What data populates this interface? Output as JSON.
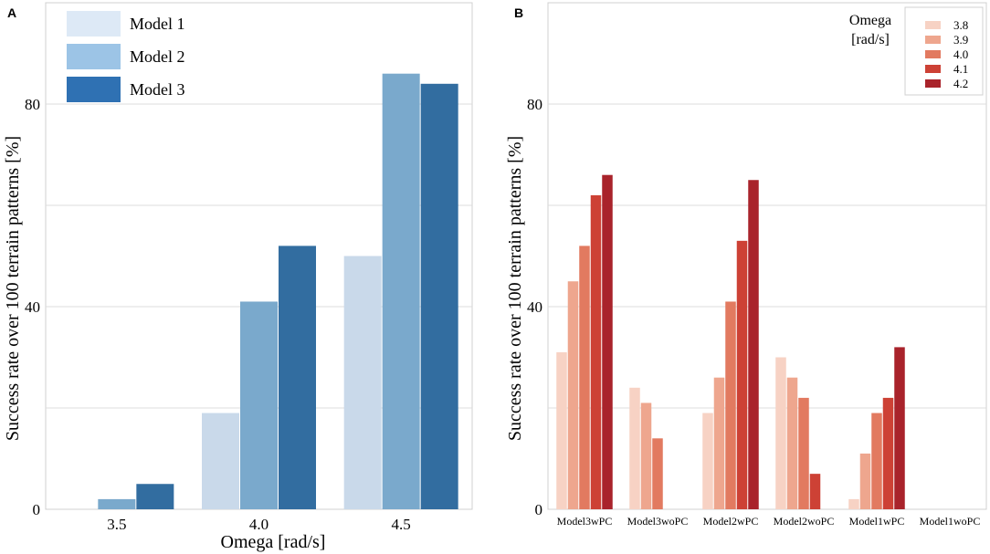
{
  "chart_data": [
    {
      "panel": "A",
      "type": "bar",
      "xlabel": "Omega [rad/s]",
      "ylabel": "Success rate over 100 terrain patterns [%]",
      "ylim": [
        0,
        100
      ],
      "yticks": [
        "0",
        "40",
        "80"
      ],
      "grid": true,
      "legend_position": "top-left",
      "categories": [
        "3.5",
        "4.0",
        "4.5"
      ],
      "series": [
        {
          "name": "Model 1",
          "color": "#c9d9ea",
          "legend_color": "#dde9f6",
          "values": [
            0,
            19,
            50
          ]
        },
        {
          "name": "Model 2",
          "color": "#7aa9cc",
          "legend_color": "#9cc4e6",
          "values": [
            2,
            41,
            86
          ]
        },
        {
          "name": "Model 3",
          "color": "#326da0",
          "legend_color": "#2f71b3",
          "values": [
            5,
            52,
            84
          ]
        }
      ]
    },
    {
      "panel": "B",
      "type": "bar",
      "xlabel": "",
      "ylabel": "Success rate over 100 terrain patterns [%]",
      "ylim": [
        0,
        100
      ],
      "yticks": [
        "0",
        "40",
        "80"
      ],
      "grid": true,
      "legend_position": "top-right",
      "legend_title": "Omega\n[rad/s]",
      "categories": [
        "Model3wPC",
        "Model3woPC",
        "Model2wPC",
        "Model2woPC",
        "Model1wPC",
        "Model1woPC"
      ],
      "series": [
        {
          "name": "3.8",
          "color": "#f7d2c4",
          "values": [
            31,
            24,
            19,
            30,
            2,
            0
          ]
        },
        {
          "name": "3.9",
          "color": "#eea68e",
          "values": [
            45,
            21,
            26,
            26,
            11,
            0
          ]
        },
        {
          "name": "4.0",
          "color": "#e27a60",
          "values": [
            52,
            14,
            41,
            22,
            19,
            0
          ]
        },
        {
          "name": "4.1",
          "color": "#cd4135",
          "values": [
            62,
            0,
            53,
            7,
            22,
            0
          ]
        },
        {
          "name": "4.2",
          "color": "#a9232b",
          "values": [
            66,
            0,
            65,
            0,
            32,
            0
          ]
        }
      ]
    }
  ]
}
